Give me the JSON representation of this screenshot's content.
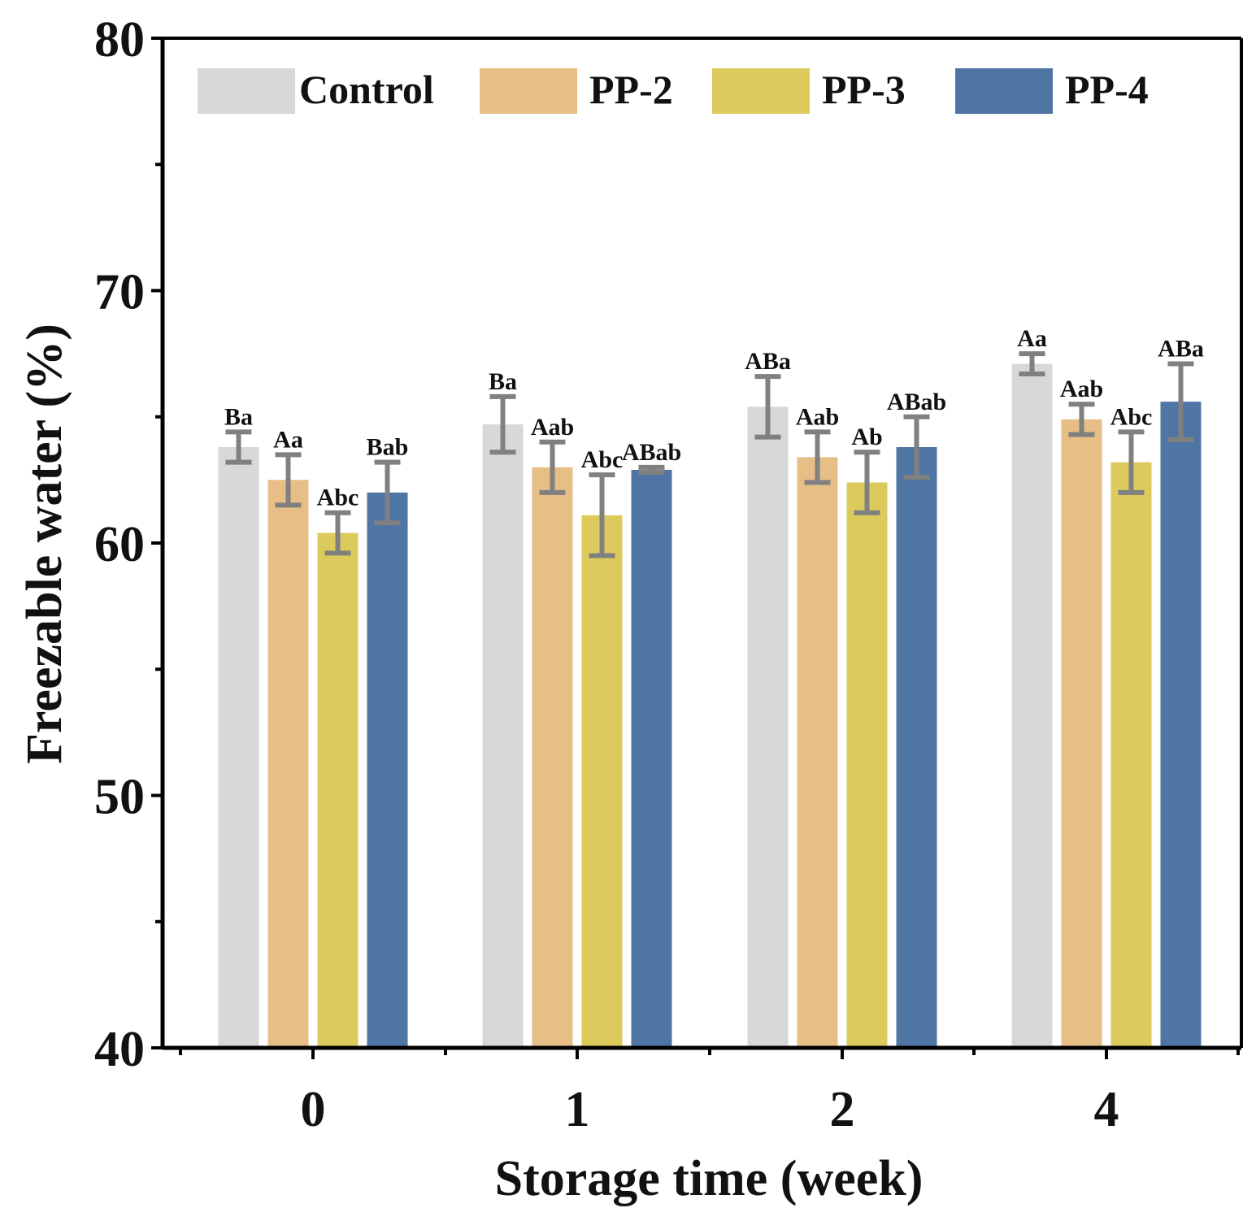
{
  "chart_data": {
    "type": "bar",
    "title": "",
    "xlabel": "Storage time (week)",
    "ylabel": "Freezable water (%)",
    "ylim": [
      40,
      80
    ],
    "yticks": [
      "40",
      "50",
      "60",
      "70",
      "80"
    ],
    "categories": [
      "0",
      "1",
      "2",
      "4"
    ],
    "legend_position": "top",
    "grid": false,
    "series": [
      {
        "name": "Control",
        "color": "#d8d8d8",
        "values": [
          63.8,
          64.7,
          65.4,
          67.1
        ],
        "errors": [
          0.6,
          1.1,
          1.2,
          0.4
        ],
        "labels": [
          "Ba",
          "Ba",
          "ABa",
          "Aa"
        ]
      },
      {
        "name": "PP-2",
        "color": "#e6be86",
        "values": [
          62.5,
          63.0,
          63.4,
          64.9
        ],
        "errors": [
          1.0,
          1.0,
          1.0,
          0.6
        ],
        "labels": [
          "Aa",
          "Aab",
          "Aab",
          "Aab"
        ]
      },
      {
        "name": "PP-3",
        "color": "#dccb5c",
        "values": [
          60.4,
          61.1,
          62.4,
          63.2
        ],
        "errors": [
          0.8,
          1.6,
          1.2,
          1.2
        ],
        "labels": [
          "Abc",
          "Abc",
          "Ab",
          "Abc"
        ]
      },
      {
        "name": "PP-4",
        "color": "#4f75a4",
        "values": [
          62.0,
          62.9,
          63.8,
          65.6
        ],
        "errors": [
          1.2,
          0.1,
          1.2,
          1.5
        ],
        "labels": [
          "Bab",
          "ABab",
          "ABab",
          "ABa"
        ]
      }
    ],
    "error_bar_color": "#808080"
  }
}
